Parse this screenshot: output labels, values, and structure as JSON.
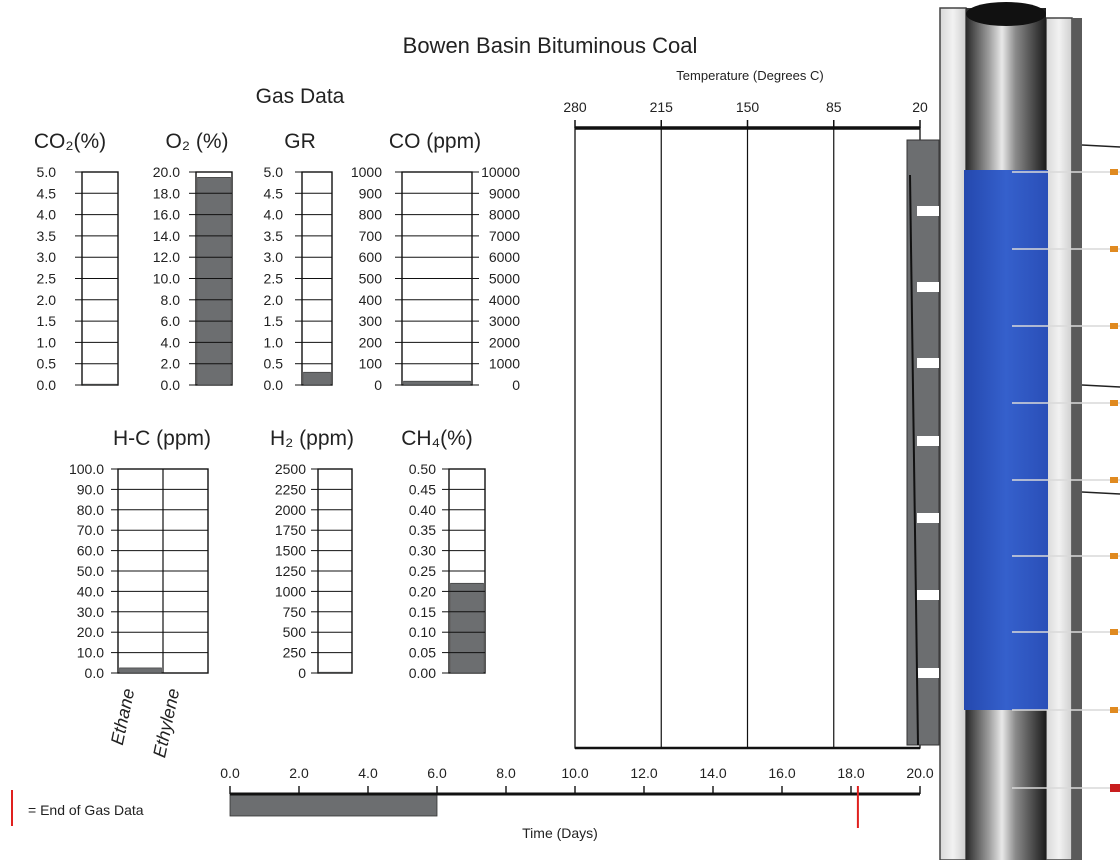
{
  "title": "Bowen Basin Bituminous Coal",
  "gas_data_label": "Gas Data",
  "legend": {
    "text": "= End of Gas Data",
    "marker_color": "#e0201e"
  },
  "colors": {
    "bar": "#6c6e70",
    "column_blue": "#2e56c2",
    "end_marker": "#e0201e"
  },
  "chart_data": [
    {
      "type": "bar",
      "id": "co2",
      "title": "CO₂(%)",
      "yticks": [
        "5.0",
        "4.5",
        "4.0",
        "3.5",
        "3.0",
        "2.5",
        "2.0",
        "1.5",
        "1.0",
        "0.5",
        "0.0"
      ],
      "ylim": [
        0,
        5.0
      ],
      "values": [
        0.02
      ]
    },
    {
      "type": "bar",
      "id": "o2",
      "title": "O₂ (%)",
      "yticks": [
        "20.0",
        "18.0",
        "16.0",
        "14.0",
        "12.0",
        "10.0",
        "8.0",
        "6.0",
        "4.0",
        "2.0",
        "0.0"
      ],
      "ylim": [
        0,
        20.0
      ],
      "values": [
        19.5
      ]
    },
    {
      "type": "bar",
      "id": "gr",
      "title": "GR",
      "yticks": [
        "5.0",
        "4.5",
        "4.0",
        "3.5",
        "3.0",
        "2.5",
        "2.0",
        "1.5",
        "1.0",
        "0.5",
        "0.0"
      ],
      "ylim": [
        0,
        5.0
      ],
      "values": [
        0.3
      ]
    },
    {
      "type": "bar",
      "id": "co",
      "title": "CO (ppm)",
      "yticks": [
        "1000",
        "900",
        "800",
        "700",
        "600",
        "500",
        "400",
        "300",
        "200",
        "100",
        "0"
      ],
      "yticks_right": [
        "10000",
        "9000",
        "8000",
        "7000",
        "6000",
        "5000",
        "4000",
        "3000",
        "2000",
        "1000",
        "0"
      ],
      "ylim": [
        0,
        1000
      ],
      "values": [
        18
      ]
    },
    {
      "type": "bar",
      "id": "hc",
      "title": "H-C (ppm)",
      "categories": [
        "Ethane",
        "Ethylene"
      ],
      "yticks": [
        "100.0",
        "90.0",
        "80.0",
        "70.0",
        "60.0",
        "50.0",
        "40.0",
        "30.0",
        "20.0",
        "10.0",
        "0.0"
      ],
      "ylim": [
        0,
        100.0
      ],
      "values": [
        2.5,
        0.2
      ]
    },
    {
      "type": "bar",
      "id": "h2",
      "title": "H₂ (ppm)",
      "yticks": [
        "2500",
        "2250",
        "2000",
        "1750",
        "1500",
        "1250",
        "1000",
        "750",
        "500",
        "250",
        "0"
      ],
      "ylim": [
        0,
        2500
      ],
      "values": [
        10
      ]
    },
    {
      "type": "bar",
      "id": "ch4",
      "title": "CH₄(%)",
      "yticks": [
        "0.50",
        "0.45",
        "0.40",
        "0.35",
        "0.30",
        "0.25",
        "0.20",
        "0.15",
        "0.10",
        "0.05",
        "0.00"
      ],
      "ylim": [
        0,
        0.5
      ],
      "values": [
        0.22
      ]
    },
    {
      "type": "line",
      "id": "temperature",
      "xlabel": "Temperature (Degrees C)",
      "xticks": [
        "280",
        "215",
        "150",
        "85",
        "20"
      ],
      "xlim": [
        280,
        20
      ],
      "grid": "vertical"
    },
    {
      "type": "bar",
      "id": "time",
      "xlabel": "Time (Days)",
      "xticks": [
        "0.0",
        "2.0",
        "4.0",
        "6.0",
        "8.0",
        "10.0",
        "12.0",
        "14.0",
        "16.0",
        "18.0",
        "20.0"
      ],
      "xlim": [
        0,
        20
      ],
      "progress_days": 6.0,
      "end_of_gas_data_day": 18.2
    }
  ]
}
